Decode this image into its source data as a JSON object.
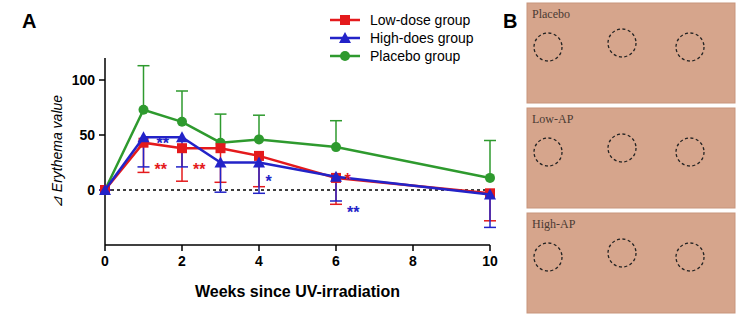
{
  "chart_data": {
    "type": "line",
    "label": "A",
    "x_label": "Weeks since UV-irradiation",
    "y_label": "⊿ Erythema value",
    "x": [
      0,
      1,
      2,
      3,
      4,
      6,
      10
    ],
    "xlim": [
      0,
      10
    ],
    "xticks": [
      0,
      2,
      4,
      6,
      8,
      10
    ],
    "ylim": [
      -50,
      120
    ],
    "yticks": [
      0,
      50,
      100
    ],
    "grid": false,
    "legend": "top-right",
    "reference_line": 0,
    "series": [
      {
        "name": "Low-dose group",
        "color": "#e41a1c",
        "marker": "square",
        "line_style": "solid",
        "values": [
          0,
          43,
          38,
          38,
          31,
          11,
          -3
        ],
        "errors": [
          0,
          27,
          30,
          31,
          28,
          24,
          25
        ]
      },
      {
        "name": "High-does group",
        "color": "#2323c8",
        "marker": "triangle",
        "line_style": "solid",
        "values": [
          0,
          48,
          48,
          25,
          25,
          12,
          -4
        ],
        "errors": [
          0,
          27,
          27,
          27,
          28,
          22,
          30
        ]
      },
      {
        "name": "Placebo group",
        "color": "#2e9a2e",
        "marker": "circle",
        "line_style": "solid",
        "values": [
          0,
          73,
          62,
          43,
          46,
          39,
          11
        ],
        "errors": [
          0,
          40,
          28,
          26,
          22,
          24,
          34
        ]
      }
    ],
    "annotations": [
      {
        "text": "**",
        "x": 1.5,
        "y": 43,
        "color": "#2323c8"
      },
      {
        "text": "**",
        "x": 1.45,
        "y": 19,
        "color": "#e41a1c"
      },
      {
        "text": "**",
        "x": 2.45,
        "y": 19,
        "color": "#e41a1c"
      },
      {
        "text": "*",
        "x": 4.25,
        "y": 8,
        "color": "#2323c8"
      },
      {
        "text": "*",
        "x": 6.3,
        "y": 10,
        "color": "#e41a1c"
      },
      {
        "text": "**",
        "x": 6.45,
        "y": -20,
        "color": "#2323c8"
      }
    ]
  },
  "panel_b": {
    "label": "B",
    "photos": [
      {
        "label": "Placebo"
      },
      {
        "label": "Low-AP"
      },
      {
        "label": "High-AP"
      }
    ]
  }
}
